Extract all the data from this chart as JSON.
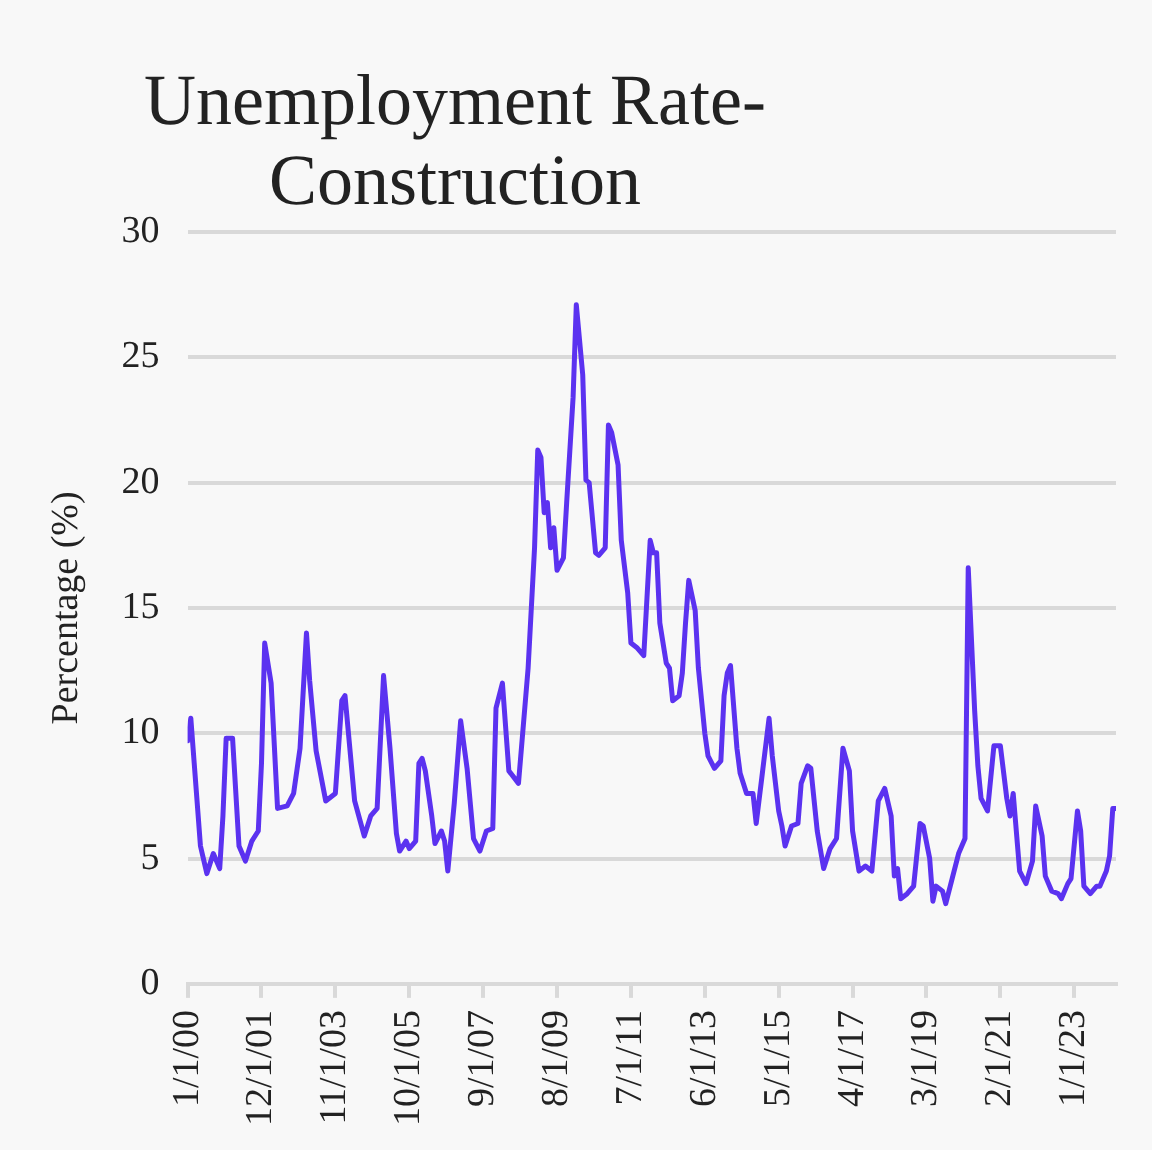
{
  "chart_data": {
    "type": "line",
    "title": "Unemployment Rate-Construction",
    "ylabel": "Percentage (%)",
    "x": [
      "2000-01",
      "2000-02",
      "2000-05",
      "2000-07",
      "2000-09",
      "2000-11",
      "2000-12",
      "2001-01",
      "2001-03",
      "2001-05",
      "2001-07",
      "2001-09",
      "2001-11",
      "2001-12",
      "2002-01",
      "2002-03",
      "2002-05",
      "2002-08",
      "2002-10",
      "2002-12",
      "2003-02",
      "2003-03",
      "2003-05",
      "2003-08",
      "2003-11",
      "2004-01",
      "2004-02",
      "2004-05",
      "2004-08",
      "2004-10",
      "2004-12",
      "2005-02",
      "2005-04",
      "2005-06",
      "2005-07",
      "2005-09",
      "2005-10",
      "2005-12",
      "2006-01",
      "2006-02",
      "2006-03",
      "2006-05",
      "2006-06",
      "2006-08",
      "2006-09",
      "2006-10",
      "2006-12",
      "2007-02",
      "2007-04",
      "2007-06",
      "2007-08",
      "2007-10",
      "2007-12",
      "2008-01",
      "2008-03",
      "2008-05",
      "2008-08",
      "2008-11",
      "2009-01",
      "2009-02",
      "2009-03",
      "2009-04",
      "2009-05",
      "2009-06",
      "2009-07",
      "2009-08",
      "2009-10",
      "2009-11",
      "2010-01",
      "2010-02",
      "2010-04",
      "2010-05",
      "2010-06",
      "2010-08",
      "2010-09",
      "2010-11",
      "2010-12",
      "2011-01",
      "2011-03",
      "2011-04",
      "2011-06",
      "2011-07",
      "2011-09",
      "2011-11",
      "2011-12",
      "2012-01",
      "2012-02",
      "2012-03",
      "2012-04",
      "2012-06",
      "2012-07",
      "2012-08",
      "2012-10",
      "2012-11",
      "2012-12",
      "2013-01",
      "2013-03",
      "2013-04",
      "2013-06",
      "2013-07",
      "2013-09",
      "2013-11",
      "2013-12",
      "2014-01",
      "2014-02",
      "2014-04",
      "2014-05",
      "2014-07",
      "2014-09",
      "2014-10",
      "2014-12",
      "2015-02",
      "2015-03",
      "2015-05",
      "2015-06",
      "2015-07",
      "2015-09",
      "2015-11",
      "2015-12",
      "2016-02",
      "2016-03",
      "2016-05",
      "2016-07",
      "2016-09",
      "2016-11",
      "2017-01",
      "2017-03",
      "2017-04",
      "2017-06",
      "2017-08",
      "2017-10",
      "2017-12",
      "2018-02",
      "2018-04",
      "2018-05",
      "2018-06",
      "2018-07",
      "2018-09",
      "2018-11",
      "2019-01",
      "2019-02",
      "2019-04",
      "2019-05",
      "2019-06",
      "2019-08",
      "2019-09",
      "2019-11",
      "2020-01",
      "2020-02",
      "2020-03",
      "2020-04",
      "2020-06",
      "2020-07",
      "2020-08",
      "2020-10",
      "2020-12",
      "2021-02",
      "2021-04",
      "2021-05",
      "2021-06",
      "2021-08",
      "2021-10",
      "2021-12",
      "2022-01",
      "2022-03",
      "2022-04",
      "2022-06",
      "2022-08",
      "2022-09",
      "2022-11",
      "2022-12",
      "2023-02",
      "2023-03",
      "2023-04",
      "2023-06",
      "2023-08",
      "2023-09",
      "2023-11",
      "2023-12",
      "2024-01",
      "2024-02"
    ],
    "series": [
      {
        "color": "#5b32f0",
        "values": [
          9.7,
          10.6,
          5.5,
          4.4,
          5.2,
          4.6,
          6.7,
          9.8,
          9.8,
          5.5,
          4.9,
          5.7,
          6.1,
          8.8,
          13.6,
          12.0,
          7.0,
          7.1,
          7.6,
          9.4,
          14.0,
          12.1,
          9.3,
          7.3,
          7.6,
          11.3,
          11.5,
          7.3,
          5.9,
          6.7,
          7.0,
          12.3,
          9.4,
          6.0,
          5.3,
          5.7,
          5.4,
          5.7,
          8.8,
          9.0,
          8.5,
          6.7,
          5.6,
          6.1,
          5.7,
          4.5,
          7.2,
          10.5,
          8.6,
          5.8,
          5.3,
          6.1,
          6.2,
          11.0,
          12.0,
          8.5,
          8.0,
          12.6,
          17.4,
          21.3,
          21.0,
          18.8,
          19.2,
          17.4,
          18.2,
          16.5,
          17.0,
          19.2,
          23.4,
          27.1,
          24.3,
          20.1,
          20.0,
          17.2,
          17.1,
          17.4,
          22.3,
          22.0,
          20.7,
          17.7,
          15.6,
          13.6,
          13.4,
          13.1,
          15.4,
          17.7,
          17.2,
          17.2,
          14.4,
          12.8,
          12.6,
          11.3,
          11.5,
          12.4,
          14.4,
          16.1,
          14.9,
          12.6,
          10.0,
          9.1,
          8.6,
          8.9,
          11.5,
          12.4,
          12.7,
          9.4,
          8.4,
          7.6,
          7.6,
          6.4,
          8.5,
          10.6,
          9.1,
          6.9,
          6.3,
          5.5,
          6.3,
          6.4,
          8.0,
          8.7,
          8.6,
          6.1,
          4.6,
          5.4,
          5.8,
          9.4,
          8.5,
          6.1,
          4.5,
          4.7,
          4.5,
          7.3,
          7.8,
          6.7,
          4.3,
          4.6,
          3.4,
          3.6,
          3.9,
          6.4,
          6.3,
          5.0,
          3.3,
          3.9,
          3.7,
          3.2,
          4.2,
          5.2,
          5.5,
          5.8,
          16.6,
          10.9,
          8.7,
          7.4,
          6.9,
          9.5,
          9.5,
          7.4,
          6.7,
          7.6,
          4.5,
          4.0,
          4.9,
          7.1,
          5.9,
          4.3,
          3.7,
          3.6,
          3.4,
          4.0,
          4.2,
          6.9,
          6.1,
          3.9,
          3.6,
          3.9,
          3.9,
          4.5,
          5.1,
          7.0,
          7.0
        ]
      }
    ],
    "xlim": [
      "2000-01",
      "2024-02"
    ],
    "xticks": [
      {
        "value": "2000-01",
        "label": "1/1/00"
      },
      {
        "value": "2001-12",
        "label": "12/1/01"
      },
      {
        "value": "2003-11",
        "label": "11/1/03"
      },
      {
        "value": "2005-10",
        "label": "10/1/05"
      },
      {
        "value": "2007-09",
        "label": "9/1/07"
      },
      {
        "value": "2009-08",
        "label": "8/1/09"
      },
      {
        "value": "2011-07",
        "label": "7/1/11"
      },
      {
        "value": "2013-06",
        "label": "6/1/13"
      },
      {
        "value": "2015-05",
        "label": "5/1/15"
      },
      {
        "value": "2017-04",
        "label": "4/1/17"
      },
      {
        "value": "2019-03",
        "label": "3/1/19"
      },
      {
        "value": "2021-02",
        "label": "2/1/21"
      },
      {
        "value": "2023-01",
        "label": "1/1/23"
      }
    ],
    "ylim": [
      0,
      30
    ],
    "yticks": [
      0,
      5,
      10,
      15,
      20,
      25,
      30
    ],
    "grid": "y",
    "legend": false,
    "marker": "none",
    "line_style": "solid"
  }
}
